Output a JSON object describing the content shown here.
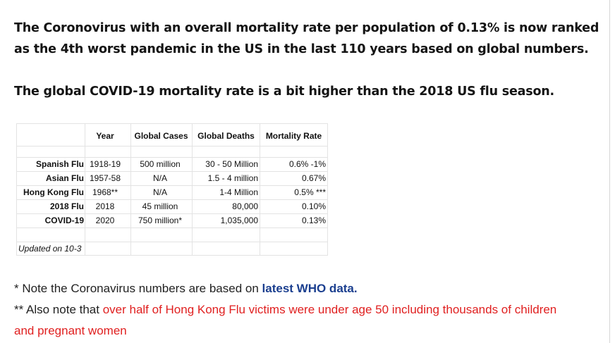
{
  "headline1": "The Coronovirus with an overall mortality rate per population of 0.13% is now ranked as the 4th worst pandemic in the US in the last 110 years based on global numbers.",
  "headline2": "The global COVID-19 mortality rate is a bit higher than the 2018 US flu season.",
  "table": {
    "headers": [
      "Year",
      "Global Cases",
      "Global Deaths",
      "Mortality Rate"
    ],
    "rows": [
      {
        "name": "Spanish Flu",
        "year": "1918-19",
        "cases": "500 million",
        "deaths": "30 - 50 Million",
        "rate": "0.6% -1%"
      },
      {
        "name": "Asian Flu",
        "year": "1957-58",
        "cases": "N/A",
        "deaths": "1.5 - 4 million",
        "rate": "0.67%"
      },
      {
        "name": "Hong Kong Flu",
        "year": "1968**",
        "cases": "N/A",
        "deaths": "1-4 Million",
        "rate": "0.5% ***"
      },
      {
        "name": "2018 Flu",
        "year": "2018",
        "cases": "45 million",
        "deaths": "80,000",
        "rate": "0.10%"
      },
      {
        "name": "COVID-19",
        "year": "2020",
        "cases": "750 million*",
        "deaths": "1,035,000",
        "rate": "0.13%"
      }
    ],
    "updated": "Updated on 10-3"
  },
  "note1": {
    "prefix": "* Note the Coronavirus numbers are based on ",
    "link": "latest WHO data."
  },
  "note2": {
    "prefix": "** Also note that ",
    "highlight": "over half of Hong Kong Flu victims were under age 50 including thousands of children and pregnant women"
  },
  "colors": {
    "link": "#1b3f8f",
    "highlight": "#e02020"
  }
}
